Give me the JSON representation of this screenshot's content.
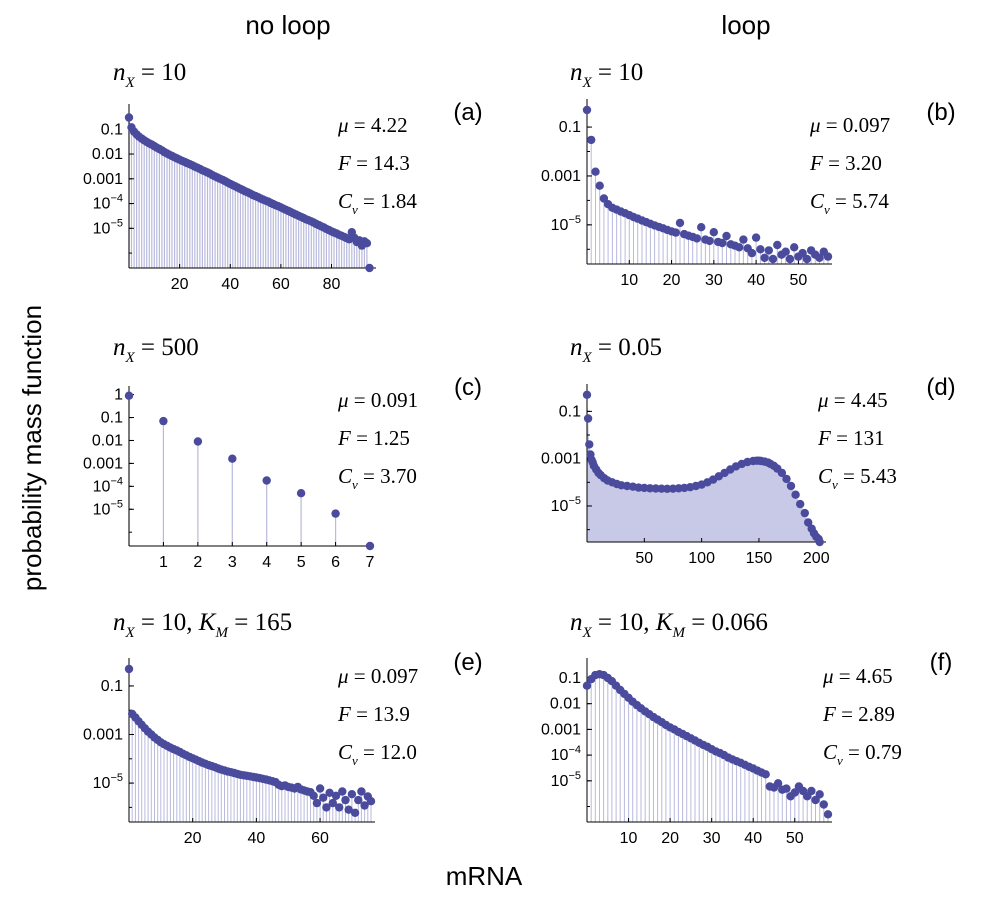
{
  "figure": {
    "col_titles": [
      "no loop",
      "loop"
    ],
    "ylabel": "probability mass function",
    "xlabel": "mRNA"
  },
  "colors": {
    "marker": "#4b4b9e",
    "stem": "#b9badd",
    "fill": "#c8c9e6",
    "axis": "#000000"
  },
  "chart_data": [
    {
      "type": "scatter",
      "panel": "(a)",
      "header": {
        "n": "10",
        "k": ""
      },
      "stats": {
        "mu": "4.22",
        "F": "14.3",
        "Cv": "1.84"
      },
      "yscale": "log",
      "ylim": [
        2.5e-07,
        0.6
      ],
      "xlim": [
        0,
        96
      ],
      "xticks": [
        20,
        40,
        60,
        80
      ],
      "yticks": [
        0.1,
        0.01,
        0.001,
        0.0001,
        1e-05
      ],
      "ytick_labels": [
        "0.1",
        "0.01",
        "0.001",
        "10^-4",
        "10^-5"
      ],
      "stem_style": "sparse",
      "x": [
        0,
        1,
        2,
        3,
        4,
        5,
        6,
        7,
        8,
        9,
        10,
        11,
        12,
        13,
        14,
        15,
        16,
        17,
        18,
        19,
        20,
        21,
        22,
        23,
        24,
        25,
        26,
        27,
        28,
        29,
        30,
        31,
        32,
        33,
        34,
        35,
        36,
        37,
        38,
        39,
        40,
        41,
        42,
        43,
        44,
        45,
        46,
        47,
        48,
        49,
        50,
        51,
        52,
        53,
        54,
        55,
        56,
        57,
        58,
        59,
        60,
        61,
        62,
        63,
        64,
        65,
        66,
        67,
        68,
        69,
        70,
        71,
        72,
        73,
        74,
        75,
        76,
        77,
        78,
        79,
        80,
        81,
        82,
        83,
        84,
        85,
        86,
        87,
        88,
        89,
        90,
        91,
        92,
        93,
        94,
        95
      ],
      "y": [
        0.3,
        0.12,
        0.08,
        0.062,
        0.05,
        0.042,
        0.036,
        0.031,
        0.027,
        0.024,
        0.021,
        0.018,
        0.016,
        0.014,
        0.012,
        0.0105,
        0.0093,
        0.0083,
        0.0074,
        0.0066,
        0.0059,
        0.0053,
        0.0048,
        0.0043,
        0.0039,
        0.0035,
        0.0031,
        0.0028,
        0.0025,
        0.0022,
        0.002,
        0.0018,
        0.0016,
        0.0014,
        0.00125,
        0.00112,
        0.001,
        0.0009,
        0.0008,
        0.0007,
        0.00062,
        0.00055,
        0.0005,
        0.00044,
        0.00039,
        0.00035,
        0.00031,
        0.00028,
        0.00025,
        0.00022,
        0.0002,
        0.00018,
        0.00016,
        0.000145,
        0.00013,
        0.00012,
        0.000105,
        9.5e-05,
        8.5e-05,
        7.8e-05,
        7e-05,
        6.2e-05,
        5.6e-05,
        5e-05,
        4.5e-05,
        4e-05,
        3.6e-05,
        3.2e-05,
        2.9e-05,
        2.6e-05,
        2.3e-05,
        2.1e-05,
        1.9e-05,
        1.7e-05,
        1.5e-05,
        1.35e-05,
        1.2e-05,
        1.08e-05,
        9.5e-06,
        8.5e-06,
        7.5e-06,
        6.8e-06,
        6.2e-06,
        5.5e-06,
        5e-06,
        4.5e-06,
        4e-06,
        3.6e-06,
        7e-06,
        4.2e-06,
        2.8e-06,
        3.3e-06,
        2e-06,
        3e-06,
        2.5e-06,
        2.5e-07
      ]
    },
    {
      "type": "scatter",
      "panel": "(b)",
      "header": {
        "n": "10",
        "k": ""
      },
      "stats": {
        "mu": "0.097",
        "F": "3.20",
        "Cv": "5.74"
      },
      "yscale": "log",
      "ylim": [
        2.5e-07,
        0.8
      ],
      "xlim": [
        0,
        57
      ],
      "xticks": [
        10,
        20,
        30,
        40,
        50
      ],
      "yticks": [
        0.1,
        0.001,
        1e-05
      ],
      "ytick_labels": [
        "0.1",
        "0.001",
        "10^-5"
      ],
      "stem_style": "dense",
      "x": [
        0,
        1,
        2,
        3,
        4,
        5,
        6,
        7,
        8,
        9,
        10,
        11,
        12,
        13,
        14,
        15,
        16,
        17,
        18,
        19,
        20,
        21,
        22,
        23,
        24,
        25,
        26,
        27,
        28,
        29,
        30,
        31,
        32,
        33,
        34,
        35,
        36,
        37,
        38,
        39,
        40,
        41,
        42,
        43,
        44,
        45,
        46,
        47,
        48,
        49,
        50,
        51,
        52,
        53,
        54,
        55,
        56,
        57
      ],
      "y": [
        0.5,
        0.03,
        0.0015,
        0.0004,
        0.00012,
        7e-05,
        5e-05,
        4.2e-05,
        3.5e-05,
        3e-05,
        2.5e-05,
        2.1e-05,
        1.8e-05,
        1.5e-05,
        1.3e-05,
        1.1e-05,
        9.5e-06,
        8.2e-06,
        7.2e-06,
        6.2e-06,
        5.4e-06,
        4.8e-06,
        1.2e-05,
        4.2e-06,
        3.6e-06,
        3.2e-06,
        2.8e-06,
        8e-06,
        2.5e-06,
        2.2e-06,
        5e-06,
        2e-06,
        1.8e-06,
        3.5e-06,
        1.6e-06,
        1.4e-06,
        1.2e-06,
        2.5e-06,
        1.1e-06,
        7e-07,
        3e-06,
        1e-06,
        4.5e-07,
        9e-07,
        4e-07,
        1.5e-06,
        6e-07,
        8e-07,
        4e-07,
        1.2e-06,
        5e-07,
        7e-07,
        4e-07,
        9e-07,
        6e-07,
        4.5e-07,
        8e-07,
        5e-07
      ]
    },
    {
      "type": "scatter",
      "panel": "(c)",
      "header": {
        "n": "500",
        "k": ""
      },
      "stats": {
        "mu": "0.091",
        "F": "1.25",
        "Cv": "3.70"
      },
      "yscale": "log",
      "ylim": [
        2.5e-07,
        1.3
      ],
      "xlim": [
        0,
        7
      ],
      "xticks": [
        1,
        2,
        3,
        4,
        5,
        6,
        7
      ],
      "yticks": [
        1,
        0.1,
        0.01,
        0.001,
        0.0001,
        1e-05
      ],
      "ytick_labels": [
        "1",
        "0.1",
        "0.01",
        "0.001",
        "10^-4",
        "10^-5"
      ],
      "stem_style": "sparse",
      "x": [
        0,
        1,
        2,
        3,
        4,
        5,
        6,
        7
      ],
      "y": [
        0.9,
        0.07,
        0.009,
        0.0016,
        0.00018,
        5e-05,
        6.5e-06,
        2.5e-07
      ]
    },
    {
      "type": "area",
      "panel": "(d)",
      "header": {
        "n": "0.05",
        "k": ""
      },
      "stats": {
        "mu": "4.45",
        "F": "131",
        "Cv": "5.43"
      },
      "yscale": "log",
      "ylim": [
        3e-07,
        0.8
      ],
      "xlim": [
        0,
        205
      ],
      "xticks": [
        50,
        100,
        150,
        200
      ],
      "yticks": [
        0.1,
        0.001,
        1e-05
      ],
      "ytick_labels": [
        "0.1",
        "0.001",
        "10^-5"
      ],
      "stem_style": "filled",
      "x": [
        0,
        1,
        2,
        3,
        4,
        5,
        6,
        8,
        10,
        12,
        15,
        18,
        22,
        26,
        30,
        35,
        40,
        45,
        50,
        55,
        60,
        65,
        70,
        75,
        80,
        85,
        90,
        95,
        100,
        105,
        110,
        115,
        120,
        125,
        130,
        135,
        140,
        145,
        148,
        150,
        152,
        155,
        158,
        160,
        163,
        166,
        170,
        174,
        178,
        182,
        186,
        190,
        193,
        196,
        198,
        200,
        202,
        203
      ],
      "y": [
        0.5,
        0.05,
        0.004,
        0.0015,
        0.0009,
        0.0007,
        0.0005,
        0.00035,
        0.00025,
        0.0002,
        0.00015,
        0.00012,
        0.0001,
        8.5e-05,
        7.5e-05,
        7e-05,
        6.5e-05,
        6e-05,
        5.8e-05,
        5.6e-05,
        5.5e-05,
        5.4e-05,
        5.3e-05,
        5.4e-05,
        5.6e-05,
        5.8e-05,
        6.2e-05,
        7e-05,
        8e-05,
        0.0001,
        0.00013,
        0.00018,
        0.00025,
        0.00035,
        0.00047,
        0.0006,
        0.00072,
        0.0008,
        0.00082,
        0.00082,
        0.0008,
        0.00075,
        0.00068,
        0.0006,
        0.0005,
        0.00038,
        0.00025,
        0.00014,
        7e-05,
        3e-05,
        1.2e-05,
        5e-06,
        2e-06,
        1.1e-06,
        7e-07,
        5e-07,
        4e-07,
        3e-07
      ]
    },
    {
      "type": "scatter",
      "panel": "(e)",
      "header": {
        "n": "10,",
        "k": "165"
      },
      "stats": {
        "mu": "0.097",
        "F": "13.9",
        "Cv": "12.0"
      },
      "yscale": "log",
      "ylim": [
        2.5e-07,
        0.8
      ],
      "xlim": [
        0,
        76
      ],
      "xticks": [
        20,
        40,
        60
      ],
      "yticks": [
        0.1,
        0.001,
        1e-05
      ],
      "ytick_labels": [
        "0.1",
        "0.001",
        "10^-5"
      ],
      "stem_style": "dense",
      "x": [
        0,
        1,
        2,
        3,
        4,
        5,
        6,
        7,
        8,
        9,
        10,
        11,
        12,
        13,
        14,
        15,
        16,
        17,
        18,
        19,
        20,
        21,
        22,
        23,
        24,
        25,
        26,
        27,
        28,
        29,
        30,
        31,
        32,
        33,
        34,
        35,
        36,
        37,
        38,
        39,
        40,
        41,
        42,
        43,
        44,
        45,
        46,
        47,
        48,
        49,
        50,
        51,
        52,
        53,
        54,
        55,
        56,
        57,
        58,
        59,
        60,
        61,
        62,
        63,
        64,
        65,
        66,
        67,
        68,
        69,
        70,
        71,
        72,
        73,
        74,
        75,
        76
      ],
      "y": [
        0.5,
        0.007,
        0.005,
        0.0035,
        0.0025,
        0.0018,
        0.0013,
        0.001,
        0.00075,
        0.0006,
        0.00048,
        0.0004,
        0.00034,
        0.00029,
        0.00025,
        0.00022,
        0.00019,
        0.00016,
        0.00014,
        0.00012,
        0.000105,
        9.2e-05,
        8e-05,
        7e-05,
        6.2e-05,
        5.5e-05,
        5e-05,
        4.5e-05,
        4e-05,
        3.6e-05,
        3.3e-05,
        3e-05,
        2.8e-05,
        2.6e-05,
        2.4e-05,
        2.2e-05,
        2.1e-05,
        2e-05,
        1.9e-05,
        1.8e-05,
        1.7e-05,
        1.6e-05,
        1.5e-05,
        1.4e-05,
        1.3e-05,
        1.2e-05,
        1.1e-05,
        8.5e-06,
        7.5e-06,
        8e-06,
        7e-06,
        6.5e-06,
        6e-06,
        7e-06,
        5.5e-06,
        5e-06,
        4.5e-06,
        4.2e-06,
        3e-06,
        1.5e-06,
        6e-06,
        2.5e-06,
        1e-06,
        4e-06,
        1.5e-06,
        3e-06,
        1e-06,
        4.5e-06,
        2e-06,
        8e-07,
        3.5e-06,
        6e-07,
        2e-06,
        4.5e-06,
        1.2e-06,
        2.8e-06,
        1.8e-06
      ]
    },
    {
      "type": "scatter",
      "panel": "(f)",
      "header": {
        "n": "10,",
        "k": "0.066"
      },
      "stats": {
        "mu": "4.65",
        "F": "2.89",
        "Cv": "0.79"
      },
      "yscale": "log",
      "ylim": [
        2.5e-07,
        0.35
      ],
      "xlim": [
        0,
        58
      ],
      "xticks": [
        10,
        20,
        30,
        40,
        50
      ],
      "yticks": [
        0.1,
        0.01,
        0.001,
        0.0001,
        1e-05
      ],
      "ytick_labels": [
        "0.1",
        "0.01",
        "0.001",
        "10^-4",
        "10^-5"
      ],
      "stem_style": "dense",
      "x": [
        0,
        1,
        2,
        3,
        4,
        5,
        6,
        7,
        8,
        9,
        10,
        11,
        12,
        13,
        14,
        15,
        16,
        17,
        18,
        19,
        20,
        21,
        22,
        23,
        24,
        25,
        26,
        27,
        28,
        29,
        30,
        31,
        32,
        33,
        34,
        35,
        36,
        37,
        38,
        39,
        40,
        41,
        42,
        43,
        44,
        45,
        46,
        47,
        48,
        49,
        50,
        51,
        52,
        53,
        54,
        55,
        56,
        57,
        58
      ],
      "y": [
        0.05,
        0.09,
        0.13,
        0.14,
        0.13,
        0.1,
        0.075,
        0.05,
        0.034,
        0.024,
        0.017,
        0.012,
        0.0088,
        0.0066,
        0.005,
        0.0039,
        0.003,
        0.0024,
        0.0019,
        0.0015,
        0.0012,
        0.001,
        0.0008,
        0.00066,
        0.00055,
        0.00045,
        0.00037,
        0.0003,
        0.00025,
        0.00021,
        0.00017,
        0.00014,
        0.00012,
        0.0001,
        8e-05,
        6.8e-05,
        5.8e-05,
        5e-05,
        4.2e-05,
        3.5e-05,
        3e-05,
        2.5e-05,
        2.1e-05,
        1.8e-05,
        6e-06,
        5.5e-06,
        8e-06,
        4.5e-06,
        5e-06,
        2.5e-06,
        3.5e-06,
        6e-06,
        4e-06,
        2.5e-06,
        4e-06,
        1.8e-06,
        3e-06,
        1.2e-06,
        5e-07
      ]
    }
  ]
}
